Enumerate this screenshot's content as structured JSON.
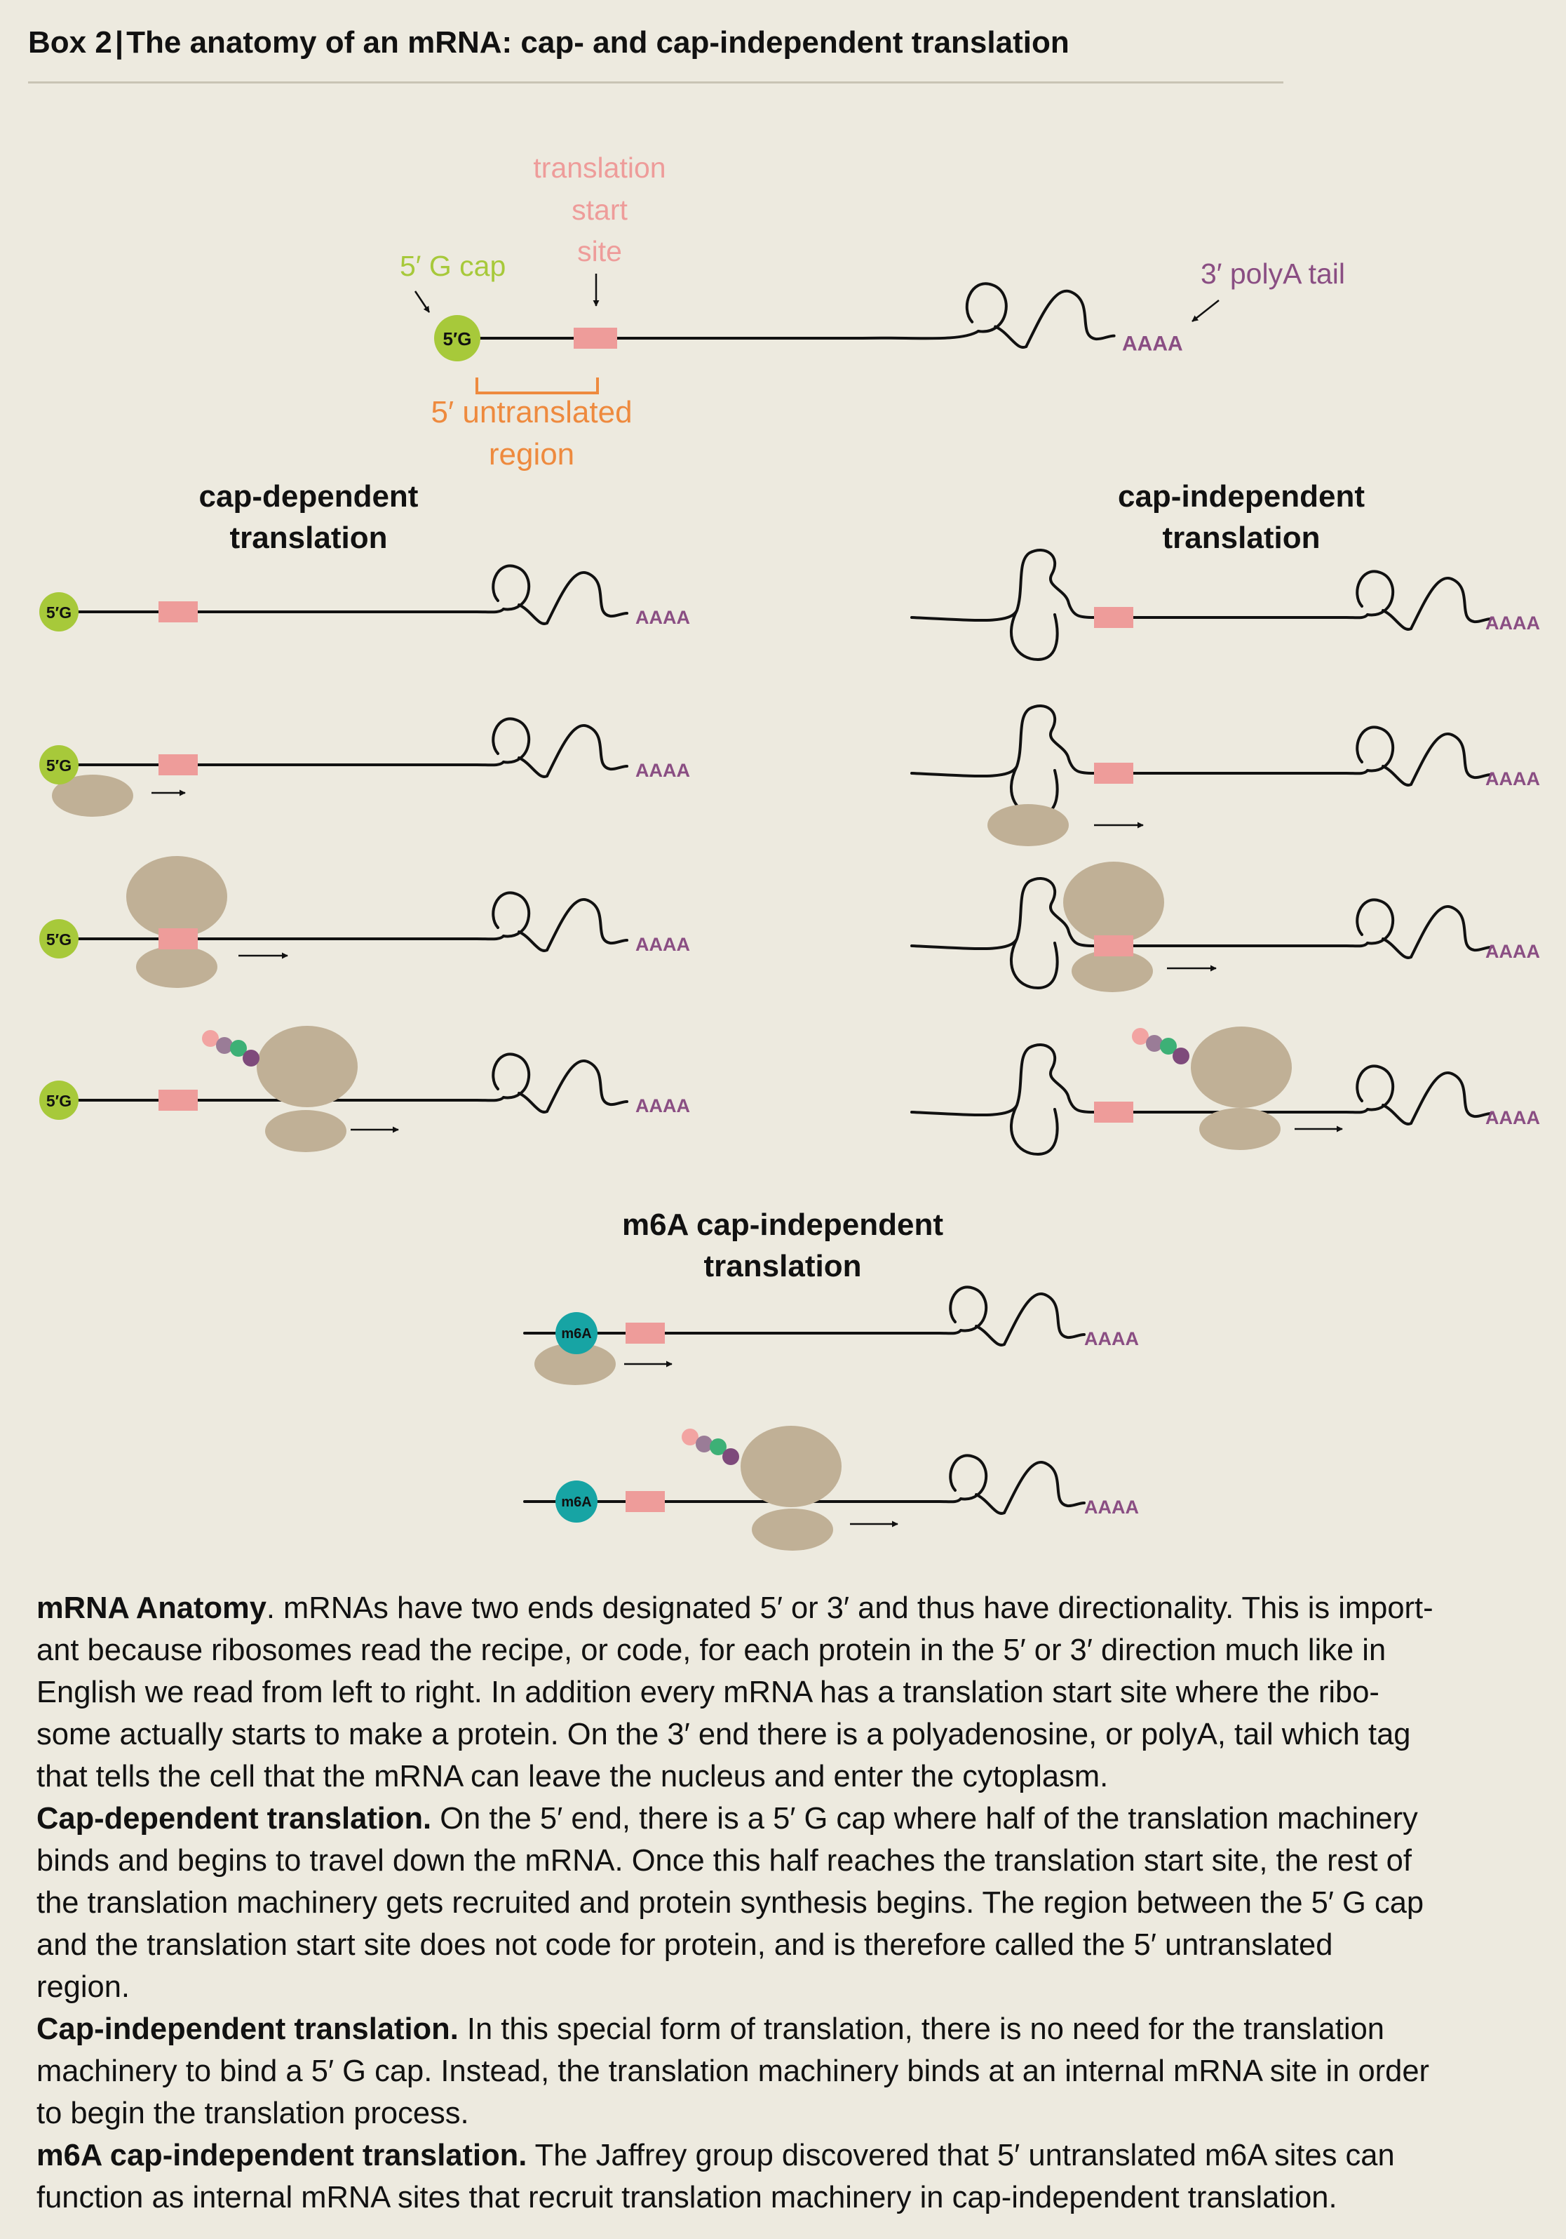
{
  "header": {
    "box_label": "Box 2",
    "separator": "|",
    "title": "The anatomy of an mRNA: cap- and cap-independent translation"
  },
  "colors": {
    "background": "#EDEADF",
    "cap_green": "#A7C93A",
    "start_site_pink": "#EE9C9A",
    "utr_orange": "#EE8A3E",
    "polyA_purple": "#8A4E83",
    "ribosome_tan": "#C0B096",
    "m6a_teal": "#17A4A4",
    "chain_pink": "#F2A4A2",
    "chain_mauve": "#9A7C97",
    "chain_green": "#3DB076",
    "chain_purple": "#7E4A7B"
  },
  "icons": {
    "cap": "green-circle-5G-cap-icon",
    "start_site": "pink-rectangle-start-site-icon",
    "ribosome": "tan-ellipse-ribosome-icon",
    "m6a": "teal-circle-m6A-icon",
    "peptide": "colored-bead-chain-icon",
    "direction": "right-arrow-icon"
  },
  "anatomy": {
    "cap_label": "5′ G cap",
    "start_site_label": [
      "translation",
      "start",
      "site"
    ],
    "polyA_label": "3′ polyA tail",
    "utr_label": [
      "5′ untranslated",
      "region"
    ],
    "cap_text": "5′G",
    "polyA_text": "AAAA"
  },
  "panels": {
    "cap_dependent": {
      "title": [
        "cap-dependent",
        "translation"
      ]
    },
    "cap_independent": {
      "title": [
        "cap-independent",
        "translation"
      ]
    },
    "m6a": {
      "title": [
        "m6A cap-independent",
        "translation"
      ],
      "marker_text": "m6A"
    }
  },
  "paragraphs": [
    {
      "heading": "mRNA Anatomy",
      "lines": [
        "mRNA Anatomy. mRNAs have two ends designated 5′ or 3′ and thus have directionality. This is import-",
        "ant because ribosomes read the recipe, or code, for each protein in the 5′ or 3′ direction much like in",
        "English we read from left to right. In addition every mRNA has a translation start site where the ribo-",
        "some actually starts to make a protein. On the 3′ end there is a polyadenosine, or polyA, tail which tag",
        "that tells the cell that the mRNA can leave the nucleus and enter the cytoplasm."
      ]
    },
    {
      "heading": "Cap-dependent translation.",
      "lines": [
        "Cap-dependent translation. On the 5′ end, there is a 5′ G cap where half of the translation machinery",
        "binds and begins to travel down the mRNA. Once this half reaches the translation start site, the rest of",
        "the translation machinery gets recruited and protein synthesis begins. The region between the 5′ G cap",
        "and the translation start site does not code for protein, and is therefore called the 5′ untranslated",
        "region."
      ]
    },
    {
      "heading": "Cap-independent translation.",
      "lines": [
        "Cap-independent translation. In this special form of translation, there is no need for the translation",
        "machinery to bind a 5′ G cap. Instead, the translation machinery binds at an internal mRNA site in order",
        "to begin the translation process."
      ]
    },
    {
      "heading": "m6A cap-independent translation.",
      "lines": [
        "m6A cap-independent translation. The Jaffrey group discovered that 5′ untranslated m6A sites can",
        "function as internal mRNA sites that recruit translation machinery in cap-independent translation."
      ]
    }
  ]
}
